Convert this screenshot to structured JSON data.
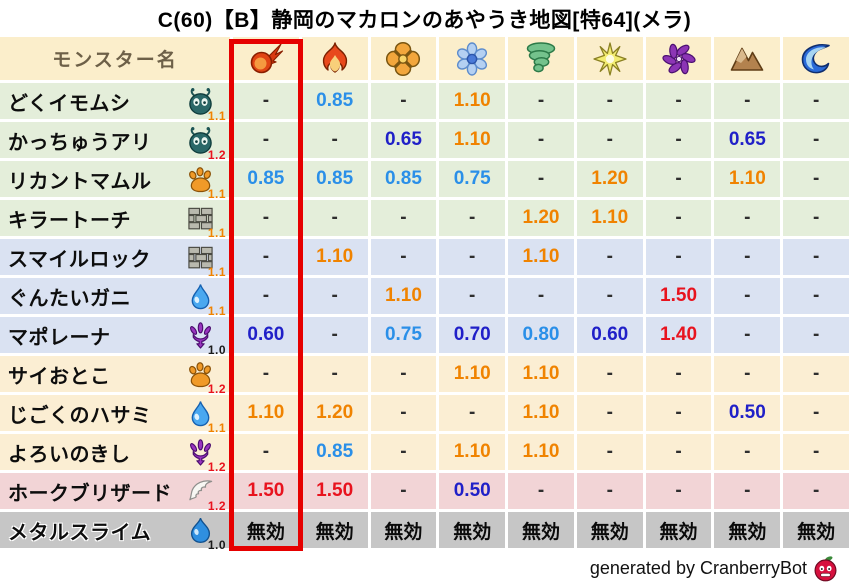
{
  "title": "C(60)【B】静岡のマカロンのあやうき地図[特64](メラ)",
  "table": {
    "name_header": "モンスター名",
    "element_columns": [
      {
        "icon": "fireball-icon",
        "highlighted": true
      },
      {
        "icon": "flame-icon"
      },
      {
        "icon": "bang-icon"
      },
      {
        "icon": "snowflake-icon"
      },
      {
        "icon": "tornado-icon"
      },
      {
        "icon": "starburst-icon"
      },
      {
        "icon": "pinwheel-icon"
      },
      {
        "icon": "mountain-icon"
      },
      {
        "icon": "wave-icon"
      }
    ],
    "rows": [
      {
        "name": "どくイモムシ",
        "type_icon": "bug-icon",
        "multiplier": "1.1",
        "group": "green",
        "values": [
          "-",
          "0.85",
          "-",
          "1.10",
          "-",
          "-",
          "-",
          "-",
          "-"
        ]
      },
      {
        "name": "かっちゅうアリ",
        "type_icon": "bug-icon",
        "multiplier": "1.2",
        "group": "green",
        "values": [
          "-",
          "-",
          "0.65",
          "1.10",
          "-",
          "-",
          "-",
          "0.65",
          "-"
        ]
      },
      {
        "name": "リカントマムル",
        "type_icon": "paw-icon",
        "multiplier": "1.1",
        "group": "green",
        "values": [
          "0.85",
          "0.85",
          "0.85",
          "0.75",
          "-",
          "1.20",
          "-",
          "1.10",
          "-"
        ]
      },
      {
        "name": "キラートーチ",
        "type_icon": "brick-icon",
        "multiplier": "1.1",
        "group": "green",
        "values": [
          "-",
          "-",
          "-",
          "-",
          "1.20",
          "1.10",
          "-",
          "-",
          "-"
        ]
      },
      {
        "name": "スマイルロック",
        "type_icon": "brick-icon",
        "multiplier": "1.1",
        "group": "blue",
        "values": [
          "-",
          "1.10",
          "-",
          "-",
          "1.10",
          "-",
          "-",
          "-",
          "-"
        ]
      },
      {
        "name": "ぐんたいガニ",
        "type_icon": "droplet-icon",
        "multiplier": "1.1",
        "group": "blue",
        "values": [
          "-",
          "-",
          "1.10",
          "-",
          "-",
          "-",
          "1.50",
          "-",
          "-"
        ]
      },
      {
        "name": "マポレーナ",
        "type_icon": "trident-icon",
        "multiplier": "1.0",
        "group": "blue",
        "values": [
          "0.60",
          "-",
          "0.75",
          "0.70",
          "0.80",
          "0.60",
          "1.40",
          "-",
          "-"
        ]
      },
      {
        "name": "サイおとこ",
        "type_icon": "paw-icon",
        "multiplier": "1.2",
        "group": "cream",
        "values": [
          "-",
          "-",
          "-",
          "1.10",
          "1.10",
          "-",
          "-",
          "-",
          "-"
        ]
      },
      {
        "name": "じごくのハサミ",
        "type_icon": "droplet-icon",
        "multiplier": "1.1",
        "group": "cream",
        "values": [
          "1.10",
          "1.20",
          "-",
          "-",
          "1.10",
          "-",
          "-",
          "0.50",
          "-"
        ]
      },
      {
        "name": "よろいのきし",
        "type_icon": "trident-icon",
        "multiplier": "1.2",
        "group": "cream",
        "values": [
          "-",
          "0.85",
          "-",
          "1.10",
          "1.10",
          "-",
          "-",
          "-",
          "-"
        ]
      },
      {
        "name": "ホークブリザード",
        "type_icon": "wing-icon",
        "multiplier": "1.2",
        "group": "pink",
        "values": [
          "1.50",
          "1.50",
          "-",
          "0.50",
          "-",
          "-",
          "-",
          "-",
          "-"
        ]
      },
      {
        "name": "メタルスライム",
        "type_icon": "slime-icon",
        "multiplier": "1.0",
        "group": "gray",
        "values": [
          "無効",
          "無効",
          "無効",
          "無効",
          "無効",
          "無効",
          "無効",
          "無効",
          "無効"
        ]
      }
    ]
  },
  "footer": {
    "text": "generated by CranberryBot",
    "icon": "cranberry-bot-icon"
  },
  "colors": {
    "header_bg": "#fbeecb",
    "row_green": "#e4eeda",
    "row_blue": "#dae2f2",
    "row_cream": "#fbeed3",
    "row_pink": "#f2d4d6",
    "row_gray": "#c6c6c6",
    "resist_light": "#2a8fe8",
    "resist_dark": "#2020c8",
    "weak_orange": "#f08300",
    "weak_red": "#e8131e",
    "multiplier_orange": "#f08300",
    "multiplier_red": "#e8131e",
    "highlight_red": "#e60000"
  },
  "chart_data": {
    "type": "table",
    "title": "C(60)【B】静岡のマカロンのあやうき地図[特64](メラ)",
    "columns": [
      "モンスター名",
      "fireball",
      "flame",
      "bang",
      "snowflake",
      "tornado",
      "starburst",
      "pinwheel",
      "mountain",
      "wave"
    ],
    "highlighted_column": "fireball",
    "rows": [
      [
        "どくイモムシ (1.1)",
        "-",
        "0.85",
        "-",
        "1.10",
        "-",
        "-",
        "-",
        "-",
        "-"
      ],
      [
        "かっちゅうアリ (1.2)",
        "-",
        "-",
        "0.65",
        "1.10",
        "-",
        "-",
        "-",
        "0.65",
        "-"
      ],
      [
        "リカントマムル (1.1)",
        "0.85",
        "0.85",
        "0.85",
        "0.75",
        "-",
        "1.20",
        "-",
        "1.10",
        "-"
      ],
      [
        "キラートーチ (1.1)",
        "-",
        "-",
        "-",
        "-",
        "1.20",
        "1.10",
        "-",
        "-",
        "-"
      ],
      [
        "スマイルロック (1.1)",
        "-",
        "1.10",
        "-",
        "-",
        "1.10",
        "-",
        "-",
        "-",
        "-"
      ],
      [
        "ぐんたいガニ (1.1)",
        "-",
        "-",
        "1.10",
        "-",
        "-",
        "-",
        "1.50",
        "-",
        "-"
      ],
      [
        "マポレーナ (1.0)",
        "0.60",
        "-",
        "0.75",
        "0.70",
        "0.80",
        "0.60",
        "1.40",
        "-",
        "-"
      ],
      [
        "サイおとこ (1.2)",
        "-",
        "-",
        "-",
        "1.10",
        "1.10",
        "-",
        "-",
        "-",
        "-"
      ],
      [
        "じごくのハサミ (1.1)",
        "1.10",
        "1.20",
        "-",
        "-",
        "1.10",
        "-",
        "-",
        "0.50",
        "-"
      ],
      [
        "よろいのきし (1.2)",
        "-",
        "0.85",
        "-",
        "1.10",
        "1.10",
        "-",
        "-",
        "-",
        "-"
      ],
      [
        "ホークブリザード (1.2)",
        "1.50",
        "1.50",
        "-",
        "0.50",
        "-",
        "-",
        "-",
        "-",
        "-"
      ],
      [
        "メタルスライム (1.0)",
        "無効",
        "無効",
        "無効",
        "無効",
        "無効",
        "無効",
        "無効",
        "無効",
        "無効"
      ]
    ],
    "footnote": "generated by CranberryBot"
  }
}
